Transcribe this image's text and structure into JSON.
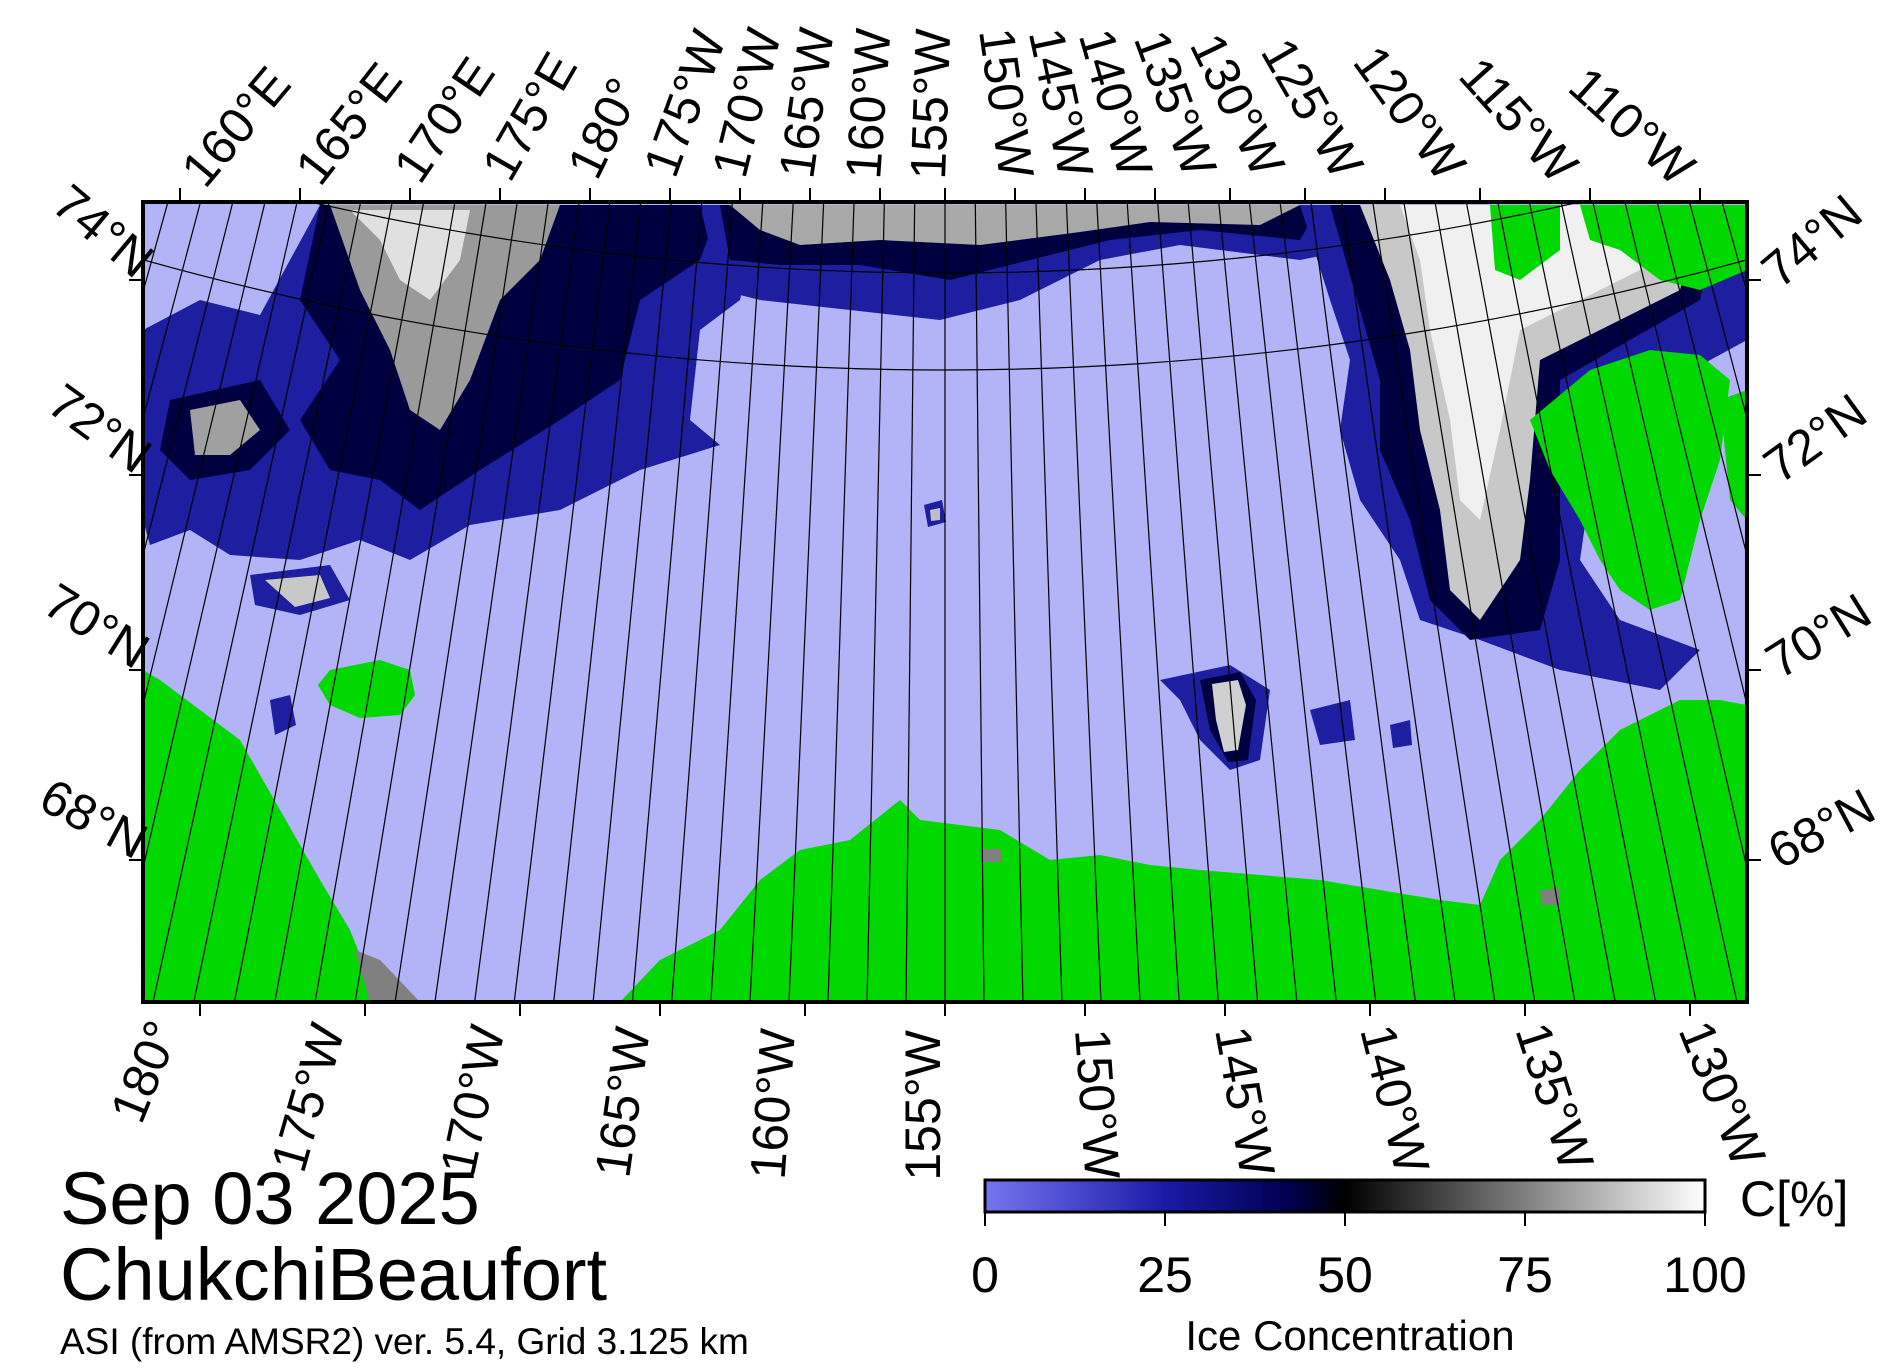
{
  "map": {
    "date": "Sep 03 2025",
    "region": "ChukchiBeaufort",
    "source": "ASI (from AMSR2) ver. 5.4,  Grid 3.125 km",
    "top_lon_labels": [
      "160°E",
      "165°E",
      "170°E",
      "175°E",
      "180°",
      "175°W",
      "170°W",
      "165°W",
      "160°W",
      "155°W",
      "150°W",
      "145°W",
      "140°W",
      "135°W",
      "130°W",
      "125°W",
      "120°W",
      "115°W",
      "110°W"
    ],
    "bottom_lon_labels": [
      "180°",
      "175°W",
      "170°W",
      "165°W",
      "160°W",
      "155°W",
      "150°W",
      "145°W",
      "140°W",
      "135°W",
      "130°W"
    ],
    "lat_labels_left": [
      "74°N",
      "72°N",
      "70°N",
      "68°N"
    ],
    "lat_labels_right": [
      "74°N",
      "72°N",
      "70°N",
      "68°N"
    ],
    "colors": {
      "open_water": "#b3b3f8",
      "land": "#00d800",
      "no_data": "#808080",
      "ice_low": "#6b6bef",
      "ice_mid": "#000060",
      "ice_high": "#ffffff"
    }
  },
  "colorbar": {
    "title": "Ice Concentration",
    "unit": "C[%]",
    "ticks": [
      "0",
      "25",
      "50",
      "75",
      "100"
    ],
    "range": [
      0,
      100
    ]
  }
}
